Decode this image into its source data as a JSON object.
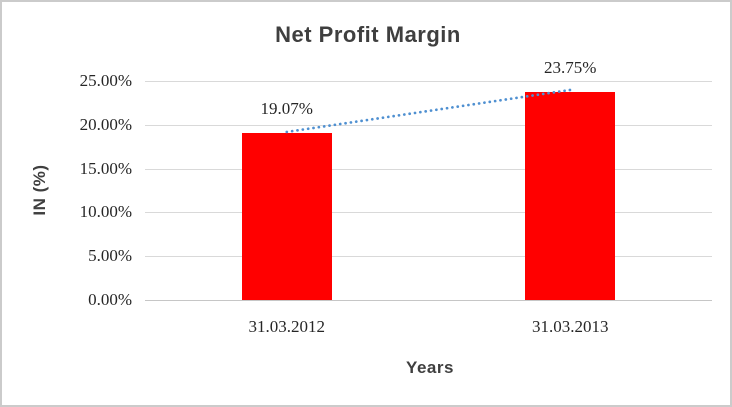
{
  "chart_data": {
    "type": "bar",
    "title": "Net Profit Margin",
    "xlabel": "Years",
    "ylabel": "IN (%)",
    "categories": [
      "31.03.2012",
      "31.03.2013"
    ],
    "values": [
      19.07,
      23.75
    ],
    "data_labels": [
      "19.07%",
      "23.75%"
    ],
    "ylim": [
      0,
      25
    ],
    "ytick_step": 5,
    "yticks": [
      {
        "value": 0,
        "label": "0.00%"
      },
      {
        "value": 5,
        "label": "5.00%"
      },
      {
        "value": 10,
        "label": "10.00%"
      },
      {
        "value": 15,
        "label": "15.00%"
      },
      {
        "value": 20,
        "label": "20.00%"
      },
      {
        "value": 25,
        "label": "25.00%"
      }
    ],
    "grid": true,
    "legend": "none",
    "bar_color": "#ff0000",
    "trendline": {
      "type": "linear",
      "style": "dotted",
      "color": "#4f90d1",
      "points": [
        19.07,
        23.75
      ]
    }
  },
  "colors": {
    "grid": "#d9d9d9",
    "axis_text": "#262626",
    "title_text": "#3f3f3f",
    "frame_border": "#cbcbcb",
    "bar": "#ff0000",
    "trendline": "#4f90d1"
  }
}
